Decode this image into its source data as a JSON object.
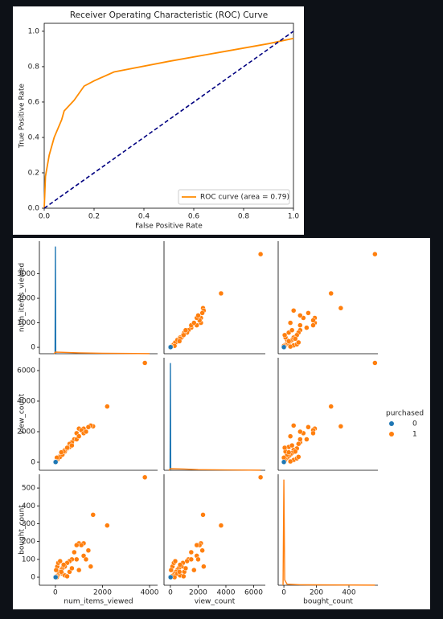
{
  "chart_data": [
    {
      "type": "line",
      "title": "Receiver Operating Characteristic (ROC) Curve",
      "xlabel": "False Positive Rate",
      "ylabel": "True Positive Rate",
      "xlim": [
        0,
        1
      ],
      "ylim": [
        0,
        1.045
      ],
      "xticks": [
        {
          "value": 0,
          "label": "0.0"
        },
        {
          "value": 0.2,
          "label": "0.2"
        },
        {
          "value": 0.4,
          "label": "0.4"
        },
        {
          "value": 0.6,
          "label": "0.6"
        },
        {
          "value": 0.8,
          "label": "0.8"
        },
        {
          "value": 1,
          "label": "1.0"
        }
      ],
      "yticks": [
        {
          "value": 0,
          "label": "0.0"
        },
        {
          "value": 0.2,
          "label": "0.2"
        },
        {
          "value": 0.4,
          "label": "0.4"
        },
        {
          "value": 0.6,
          "label": "0.6"
        },
        {
          "value": 0.8,
          "label": "0.8"
        },
        {
          "value": 1,
          "label": "1.0"
        }
      ],
      "legend": "lower right",
      "series": [
        {
          "name": "ROC curve (area = 0.79)",
          "color": "darkorange",
          "x": [
            0,
            0.005,
            0.02,
            0.04,
            0.07,
            0.08,
            0.12,
            0.16,
            0.2,
            0.28,
            0.5,
            0.7,
            0.9,
            1.0
          ],
          "values": [
            0,
            0.18,
            0.3,
            0.4,
            0.5,
            0.55,
            0.61,
            0.69,
            0.72,
            0.77,
            0.83,
            0.88,
            0.93,
            0.96
          ]
        },
        {
          "color": "navy",
          "dash": true,
          "x": [
            0,
            1
          ],
          "values": [
            0,
            1
          ]
        }
      ]
    },
    {
      "type": "pairplot",
      "variables": [
        "num_items_viewed",
        "view_count",
        "bought_count"
      ],
      "legend_title": "purchased",
      "xlims": [
        [
          -680,
          4340
        ],
        [
          -460,
          6840
        ],
        [
          -35,
          578
        ]
      ],
      "ylims": [
        [
          -260,
          4330
        ],
        [
          -526,
          6840
        ],
        [
          -45,
          577
        ]
      ],
      "xticks": [
        [
          0,
          2000,
          4000
        ],
        [
          0,
          2000,
          4000,
          6000
        ],
        [
          0,
          200,
          400
        ]
      ],
      "yticks": [
        [
          0,
          1000,
          2000,
          3000
        ],
        [
          0,
          2000,
          4000,
          6000
        ],
        [
          0,
          100,
          200,
          300,
          400,
          500
        ]
      ],
      "kde_ylim": [
        0,
        1.05
      ],
      "series": [
        {
          "name": "0",
          "color": "#1f77b4",
          "num_items_viewed": [
            0,
            10
          ],
          "view_count": [
            0,
            15
          ],
          "bought_count": [
            0,
            0
          ],
          "kde": [
            {
              "x": [
                -15,
                0,
                15
              ],
              "density": [
                0,
                1,
                0
              ]
            },
            {
              "x": [
                -25,
                0,
                25
              ],
              "density": [
                0,
                1,
                0
              ]
            },
            null
          ]
        },
        {
          "name": "1",
          "color": "#ff7f0e",
          "num_items_viewed": [
            3800,
            2200,
            1600,
            1000,
            1200,
            1100,
            900,
            1500,
            1400,
            800,
            700,
            600,
            500,
            400,
            300,
            250,
            200,
            150,
            100,
            50,
            80,
            120,
            200,
            300,
            400,
            600,
            700,
            900,
            1000,
            1200,
            60,
            350,
            500,
            1300,
            250,
            30
          ],
          "view_count": [
            6500,
            3650,
            2350,
            2200,
            2200,
            2100,
            1900,
            2400,
            2300,
            1500,
            1300,
            1200,
            900,
            800,
            600,
            500,
            400,
            300,
            200,
            100,
            150,
            250,
            350,
            500,
            700,
            1000,
            1100,
            1500,
            1700,
            1900,
            300,
            700,
            950,
            2000,
            650,
            50
          ],
          "bought_count": [
            560,
            290,
            350,
            190,
            190,
            180,
            180,
            60,
            150,
            140,
            100,
            90,
            80,
            60,
            50,
            40,
            30,
            20,
            10,
            5,
            60,
            80,
            90,
            20,
            10,
            30,
            50,
            100,
            40,
            120,
            0,
            70,
            5,
            100,
            30,
            40
          ],
          "kde": [
            {
              "x": [
                -60,
                0,
                500,
                1000,
                2000,
                4000
              ],
              "density": [
                0,
                0.015,
                0.012,
                0.008,
                0.004,
                0.001
              ]
            },
            {
              "x": [
                -100,
                0,
                1000,
                2000,
                4000,
                6500
              ],
              "density": [
                0,
                0.015,
                0.012,
                0.006,
                0.003,
                0.001
              ]
            },
            {
              "x": [
                -5,
                0,
                5,
                20,
                100,
                560
              ],
              "density": [
                0,
                1,
                0.05,
                0.01,
                0.004,
                0.001
              ]
            }
          ]
        }
      ]
    }
  ]
}
